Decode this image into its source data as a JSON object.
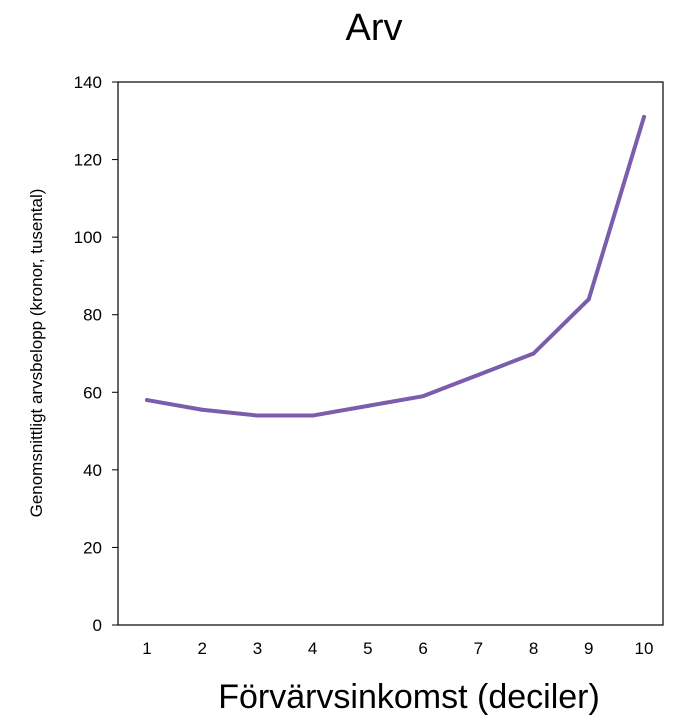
{
  "chart_data": {
    "type": "line",
    "title": "Arv",
    "xlabel": "Förvärvsinkomst (deciler)",
    "ylabel": "Genomsnittligt arvsbelopp (kronor, tusental)",
    "categories": [
      "1",
      "2",
      "3",
      "4",
      "5",
      "6",
      "7",
      "8",
      "9",
      "10"
    ],
    "series": [
      {
        "values": [
          58,
          55.5,
          54,
          54,
          56.5,
          59,
          64.5,
          70,
          84,
          131
        ]
      }
    ],
    "ylim": [
      0,
      140
    ],
    "yticks": [
      0,
      20,
      40,
      60,
      80,
      100,
      120,
      140
    ],
    "grid": false,
    "legend": "none",
    "colors": {
      "line": "#7b5cad",
      "axis": "#000000"
    }
  }
}
